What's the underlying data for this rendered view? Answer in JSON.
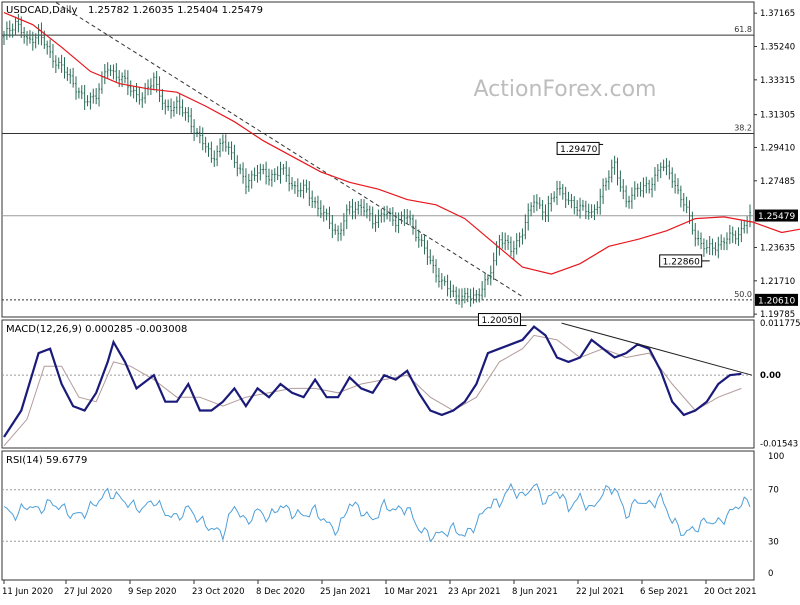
{
  "chart_data": [
    {
      "type": "candlestick",
      "title": "USDCAD,Daily",
      "ohlc_label": "1.25782 1.26035 1.25404 1.25479",
      "watermark": "ActionForex.com",
      "price_labels": [
        "1.37165",
        "1.35240",
        "1.33315",
        "1.31305",
        "1.29410",
        "1.27485",
        "1.25479",
        "1.23635",
        "1.21710",
        "1.20610",
        "1.19785"
      ],
      "ylim": [
        1.1962,
        1.3781
      ],
      "current_price": 1.25479,
      "current_price_label": "1.25479",
      "horizontal_lines": [
        {
          "value": 1.359,
          "label": "61.8"
        },
        {
          "value": 1.3022,
          "label": "38.2"
        },
        {
          "value": 1.2547,
          "label": ""
        },
        {
          "value": 1.2061,
          "label": "50.0"
        }
      ],
      "boxed_price_label": "1.20610",
      "annotations": [
        {
          "label": "1.29470",
          "x": "2021-07-15",
          "y": 1.2947
        },
        {
          "label": "1.22860",
          "x": "2021-10-07",
          "y": 1.2286
        },
        {
          "label": "1.20050",
          "x": "2021-05-27",
          "y": 1.2005
        }
      ],
      "trendline": [
        [
          "2020-07-27",
          1.372
        ],
        [
          "2021-05-27",
          1.208
        ]
      ],
      "moving_average": {
        "color": "#e8161d",
        "values": [
          [
            0,
            1.372
          ],
          [
            10,
            1.365
          ],
          [
            20,
            1.352
          ],
          [
            30,
            1.338
          ],
          [
            40,
            1.331
          ],
          [
            50,
            1.328
          ],
          [
            60,
            1.326
          ],
          [
            70,
            1.318
          ],
          [
            80,
            1.309
          ],
          [
            90,
            1.298
          ],
          [
            100,
            1.289
          ],
          [
            110,
            1.28
          ],
          [
            120,
            1.274
          ],
          [
            130,
            1.27
          ],
          [
            140,
            1.264
          ],
          [
            150,
            1.261
          ],
          [
            160,
            1.253
          ],
          [
            170,
            1.239
          ],
          [
            180,
            1.225
          ],
          [
            190,
            1.221
          ],
          [
            200,
            1.227
          ],
          [
            210,
            1.237
          ],
          [
            220,
            1.241
          ],
          [
            230,
            1.246
          ],
          [
            240,
            1.253
          ],
          [
            250,
            1.254
          ],
          [
            260,
            1.251
          ],
          [
            270,
            1.245
          ],
          [
            280,
            1.248
          ]
        ]
      },
      "candles_close": [
        [
          0,
          1.358
        ],
        [
          4,
          1.367
        ],
        [
          8,
          1.355
        ],
        [
          12,
          1.36
        ],
        [
          16,
          1.348
        ],
        [
          20,
          1.34
        ],
        [
          24,
          1.332
        ],
        [
          28,
          1.32
        ],
        [
          32,
          1.325
        ],
        [
          36,
          1.34
        ],
        [
          40,
          1.335
        ],
        [
          44,
          1.328
        ],
        [
          48,
          1.322
        ],
        [
          52,
          1.335
        ],
        [
          56,
          1.315
        ],
        [
          60,
          1.32
        ],
        [
          64,
          1.31
        ],
        [
          68,
          1.3
        ],
        [
          72,
          1.288
        ],
        [
          76,
          1.297
        ],
        [
          80,
          1.288
        ],
        [
          84,
          1.272
        ],
        [
          88,
          1.282
        ],
        [
          92,
          1.276
        ],
        [
          96,
          1.282
        ],
        [
          100,
          1.272
        ],
        [
          104,
          1.27
        ],
        [
          108,
          1.262
        ],
        [
          112,
          1.253
        ],
        [
          116,
          1.244
        ],
        [
          120,
          1.259
        ],
        [
          124,
          1.26
        ],
        [
          128,
          1.252
        ],
        [
          132,
          1.256
        ],
        [
          136,
          1.252
        ],
        [
          140,
          1.254
        ],
        [
          144,
          1.242
        ],
        [
          148,
          1.228
        ],
        [
          152,
          1.216
        ],
        [
          156,
          1.21
        ],
        [
          160,
          1.207
        ],
        [
          164,
          1.209
        ],
        [
          168,
          1.217
        ],
        [
          172,
          1.242
        ],
        [
          176,
          1.235
        ],
        [
          180,
          1.245
        ],
        [
          184,
          1.265
        ],
        [
          188,
          1.255
        ],
        [
          192,
          1.272
        ],
        [
          196,
          1.262
        ],
        [
          200,
          1.26
        ],
        [
          204,
          1.255
        ],
        [
          208,
          1.27
        ],
        [
          212,
          1.285
        ],
        [
          216,
          1.261
        ],
        [
          220,
          1.272
        ],
        [
          224,
          1.27
        ],
        [
          228,
          1.285
        ],
        [
          232,
          1.276
        ],
        [
          236,
          1.262
        ],
        [
          240,
          1.243
        ],
        [
          244,
          1.235
        ],
        [
          248,
          1.238
        ],
        [
          252,
          1.242
        ],
        [
          256,
          1.246
        ],
        [
          259,
          1.2548
        ]
      ],
      "xtick_labels": [
        "11 Jun 2020",
        "27 Jul 2020",
        "9 Sep 2020",
        "23 Oct 2020",
        "8 Dec 2020",
        "25 Jan 2021",
        "10 Mar 2021",
        "23 Apr 2021",
        "8 Jun 2021",
        "22 Jul 2021",
        "6 Sep 2021",
        "20 Oct 2021"
      ]
    },
    {
      "type": "line",
      "title": "MACD(12,26,9) 0.000285 -0.003008",
      "ylim": [
        -0.0165,
        0.0125
      ],
      "tick_labels": [
        "0.011775",
        "0.00",
        "-0.01543"
      ],
      "main_label": "0.00",
      "series": [
        {
          "color": "#1a1a7a",
          "values": [
            [
              0,
              -0.014
            ],
            [
              6,
              -0.008
            ],
            [
              12,
              0.005
            ],
            [
              16,
              0.006
            ],
            [
              20,
              -0.002
            ],
            [
              24,
              -0.007
            ],
            [
              28,
              -0.008
            ],
            [
              32,
              -0.004
            ],
            [
              36,
              0.003
            ],
            [
              38,
              0.0075
            ],
            [
              42,
              0.003
            ],
            [
              46,
              -0.003
            ],
            [
              52,
              0.0
            ],
            [
              56,
              -0.006
            ],
            [
              60,
              -0.006
            ],
            [
              64,
              -0.002
            ],
            [
              68,
              -0.008
            ],
            [
              72,
              -0.008
            ],
            [
              76,
              -0.006
            ],
            [
              80,
              -0.003
            ],
            [
              84,
              -0.007
            ],
            [
              88,
              -0.003
            ],
            [
              92,
              -0.005
            ],
            [
              96,
              -0.002
            ],
            [
              100,
              -0.004
            ],
            [
              104,
              -0.005
            ],
            [
              108,
              -0.001
            ],
            [
              112,
              -0.005
            ],
            [
              116,
              -0.005
            ],
            [
              120,
              -0.0005
            ],
            [
              124,
              -0.003
            ],
            [
              128,
              -0.004
            ],
            [
              132,
              0.0
            ],
            [
              136,
              -0.001
            ],
            [
              140,
              0.001
            ],
            [
              144,
              -0.004
            ],
            [
              148,
              -0.008
            ],
            [
              152,
              -0.009
            ],
            [
              156,
              -0.008
            ],
            [
              160,
              -0.006
            ],
            [
              164,
              -0.002
            ],
            [
              168,
              0.005
            ],
            [
              172,
              0.006
            ],
            [
              176,
              0.007
            ],
            [
              180,
              0.008
            ],
            [
              184,
              0.011
            ],
            [
              188,
              0.009
            ],
            [
              192,
              0.004
            ],
            [
              196,
              0.003
            ],
            [
              200,
              0.004
            ],
            [
              204,
              0.008
            ],
            [
              208,
              0.006
            ],
            [
              212,
              0.004
            ],
            [
              216,
              0.005
            ],
            [
              220,
              0.007
            ],
            [
              224,
              0.006
            ],
            [
              228,
              0.001
            ],
            [
              232,
              -0.006
            ],
            [
              236,
              -0.009
            ],
            [
              240,
              -0.008
            ],
            [
              244,
              -0.006
            ],
            [
              248,
              -0.002
            ],
            [
              252,
              0.0
            ],
            [
              256,
              0.0003
            ]
          ]
        },
        {
          "color": "#b39b9b",
          "values": [
            [
              0,
              -0.016
            ],
            [
              8,
              -0.01
            ],
            [
              14,
              0.002
            ],
            [
              20,
              0.002
            ],
            [
              26,
              -0.005
            ],
            [
              32,
              -0.006
            ],
            [
              38,
              0.003
            ],
            [
              44,
              0.002
            ],
            [
              52,
              -0.001
            ],
            [
              60,
              -0.005
            ],
            [
              68,
              -0.005
            ],
            [
              76,
              -0.007
            ],
            [
              84,
              -0.005
            ],
            [
              92,
              -0.004
            ],
            [
              100,
              -0.003
            ],
            [
              108,
              -0.003
            ],
            [
              116,
              -0.004
            ],
            [
              124,
              -0.002
            ],
            [
              132,
              -0.001
            ],
            [
              140,
              0.0
            ],
            [
              148,
              -0.005
            ],
            [
              156,
              -0.008
            ],
            [
              164,
              -0.005
            ],
            [
              172,
              0.003
            ],
            [
              180,
              0.006
            ],
            [
              184,
              0.009
            ],
            [
              192,
              0.008
            ],
            [
              200,
              0.004
            ],
            [
              208,
              0.006
            ],
            [
              216,
              0.004
            ],
            [
              224,
              0.005
            ],
            [
              232,
              -0.002
            ],
            [
              240,
              -0.008
            ],
            [
              248,
              -0.005
            ],
            [
              256,
              -0.003
            ]
          ]
        }
      ],
      "trendline": [
        [
          "2021-07-08",
          0.0118
        ],
        [
          "2021-10-28",
          0.0
        ]
      ]
    },
    {
      "type": "line",
      "title": "RSI(14) 59.6779",
      "ylim": [
        0,
        100
      ],
      "tick_labels": [
        "100",
        "70",
        "30",
        "0"
      ],
      "levels": [
        70,
        30
      ],
      "series": [
        {
          "color": "#4f9fd9",
          "values": [
            [
              0,
              55
            ],
            [
              4,
              50
            ],
            [
              8,
              58
            ],
            [
              12,
              54
            ],
            [
              16,
              60
            ],
            [
              20,
              56
            ],
            [
              24,
              50
            ],
            [
              28,
              52
            ],
            [
              32,
              60
            ],
            [
              36,
              68
            ],
            [
              40,
              64
            ],
            [
              44,
              58
            ],
            [
              48,
              55
            ],
            [
              52,
              62
            ],
            [
              56,
              52
            ],
            [
              60,
              48
            ],
            [
              64,
              56
            ],
            [
              68,
              46
            ],
            [
              72,
              40
            ],
            [
              76,
              36
            ],
            [
              80,
              58
            ],
            [
              84,
              44
            ],
            [
              88,
              54
            ],
            [
              92,
              48
            ],
            [
              96,
              58
            ],
            [
              100,
              52
            ],
            [
              104,
              50
            ],
            [
              108,
              54
            ],
            [
              112,
              44
            ],
            [
              116,
              38
            ],
            [
              120,
              60
            ],
            [
              124,
              54
            ],
            [
              128,
              46
            ],
            [
              132,
              58
            ],
            [
              136,
              54
            ],
            [
              140,
              56
            ],
            [
              144,
              40
            ],
            [
              148,
              34
            ],
            [
              152,
              36
            ],
            [
              156,
              40
            ],
            [
              160,
              34
            ],
            [
              164,
              44
            ],
            [
              168,
              58
            ],
            [
              172,
              60
            ],
            [
              176,
              72
            ],
            [
              180,
              64
            ],
            [
              184,
              74
            ],
            [
              188,
              60
            ],
            [
              192,
              70
            ],
            [
              196,
              56
            ],
            [
              200,
              64
            ],
            [
              204,
              54
            ],
            [
              208,
              68
            ],
            [
              212,
              72
            ],
            [
              216,
              50
            ],
            [
              220,
              62
            ],
            [
              224,
              58
            ],
            [
              228,
              64
            ],
            [
              232,
              46
            ],
            [
              236,
              36
            ],
            [
              240,
              40
            ],
            [
              244,
              46
            ],
            [
              248,
              44
            ],
            [
              252,
              52
            ],
            [
              256,
              60
            ]
          ]
        }
      ]
    }
  ]
}
